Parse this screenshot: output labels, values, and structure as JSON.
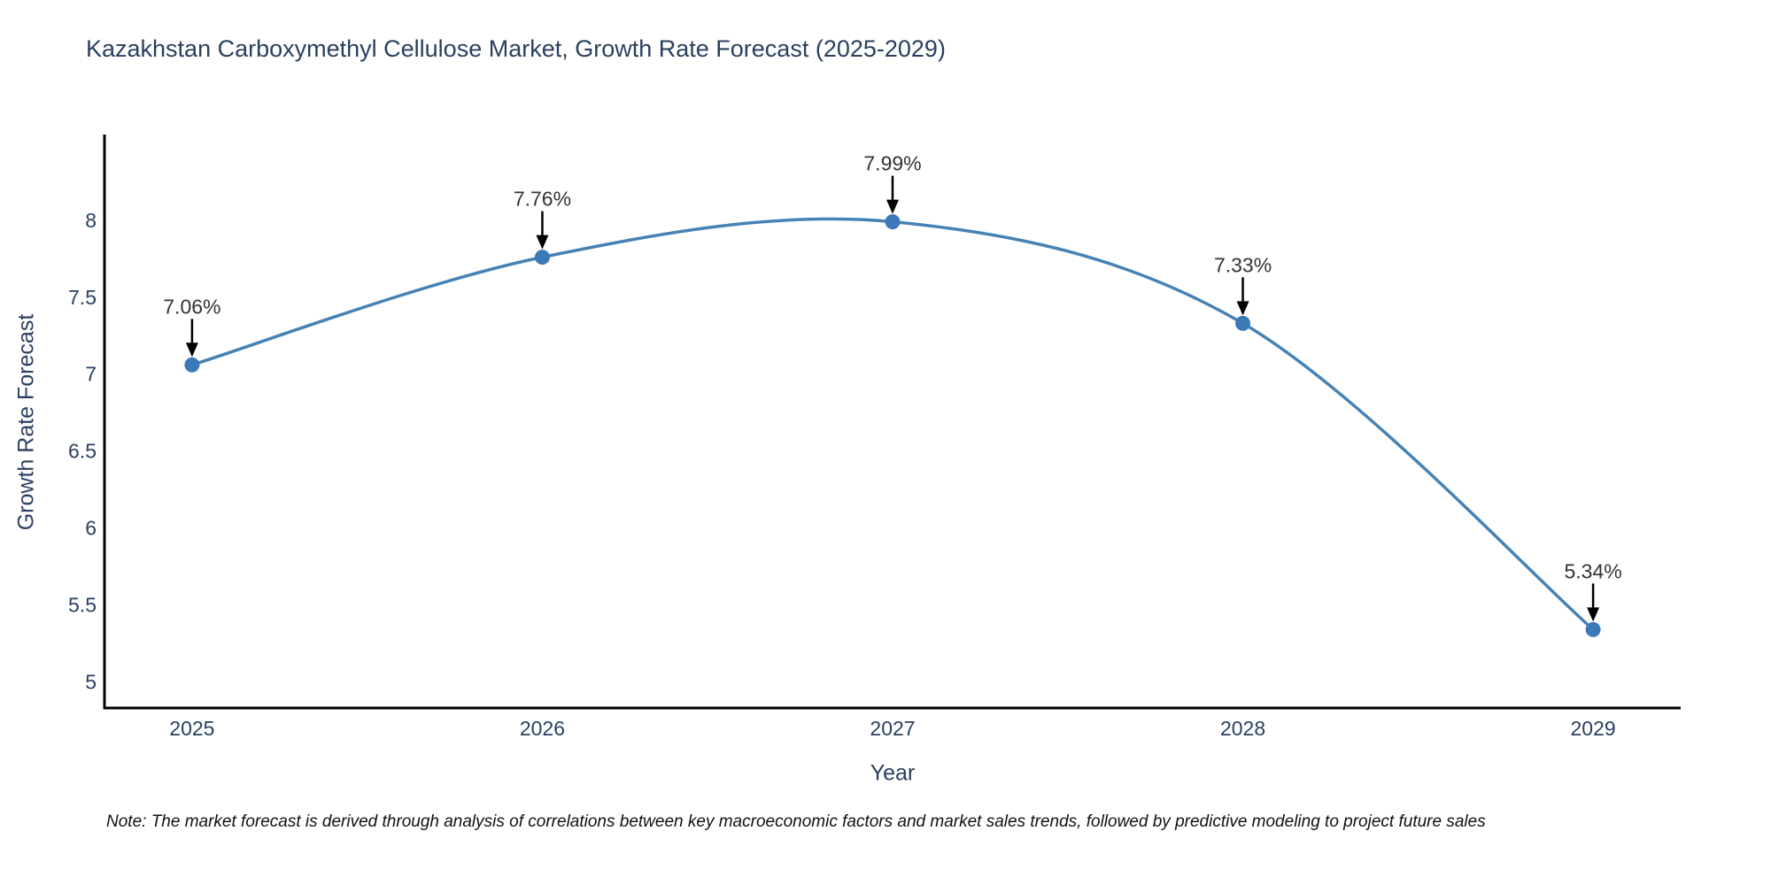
{
  "page": {
    "note": "Note: The market forecast is derived through analysis of correlations between key macroeconomic factors and market sales trends, followed by predictive modeling to project future sales"
  },
  "chart_data": {
    "type": "line",
    "title": "Kazakhstan Carboxymethyl Cellulose Market, Growth Rate Forecast (2025-2029)",
    "xlabel": "Year",
    "ylabel": "Growth Rate Forecast",
    "x": [
      2025,
      2026,
      2027,
      2028,
      2029
    ],
    "series": [
      {
        "name": "Growth Rate Forecast",
        "values": [
          7.06,
          7.76,
          7.99,
          7.33,
          5.34
        ]
      }
    ],
    "point_labels": [
      "7.06%",
      "7.76%",
      "7.99%",
      "7.33%",
      "5.34%"
    ],
    "xticks": [
      "2025",
      "2026",
      "2027",
      "2028",
      "2029"
    ],
    "yticks": [
      "5",
      "5.5",
      "6",
      "6.5",
      "7",
      "7.5",
      "8"
    ],
    "xlim": [
      2024.75,
      2029.25
    ],
    "ylim": [
      4.83,
      8.54
    ],
    "grid": false,
    "legend": false,
    "line_shape": "spline",
    "annotation_arrows": true,
    "colors": {
      "line": "#4682B4",
      "marker": "#3B79B8",
      "axis_line": "#000000",
      "tick_text": "#2a3f5f",
      "annotation_text": "#333333",
      "arrow": "#000000",
      "background": "#ffffff"
    }
  }
}
